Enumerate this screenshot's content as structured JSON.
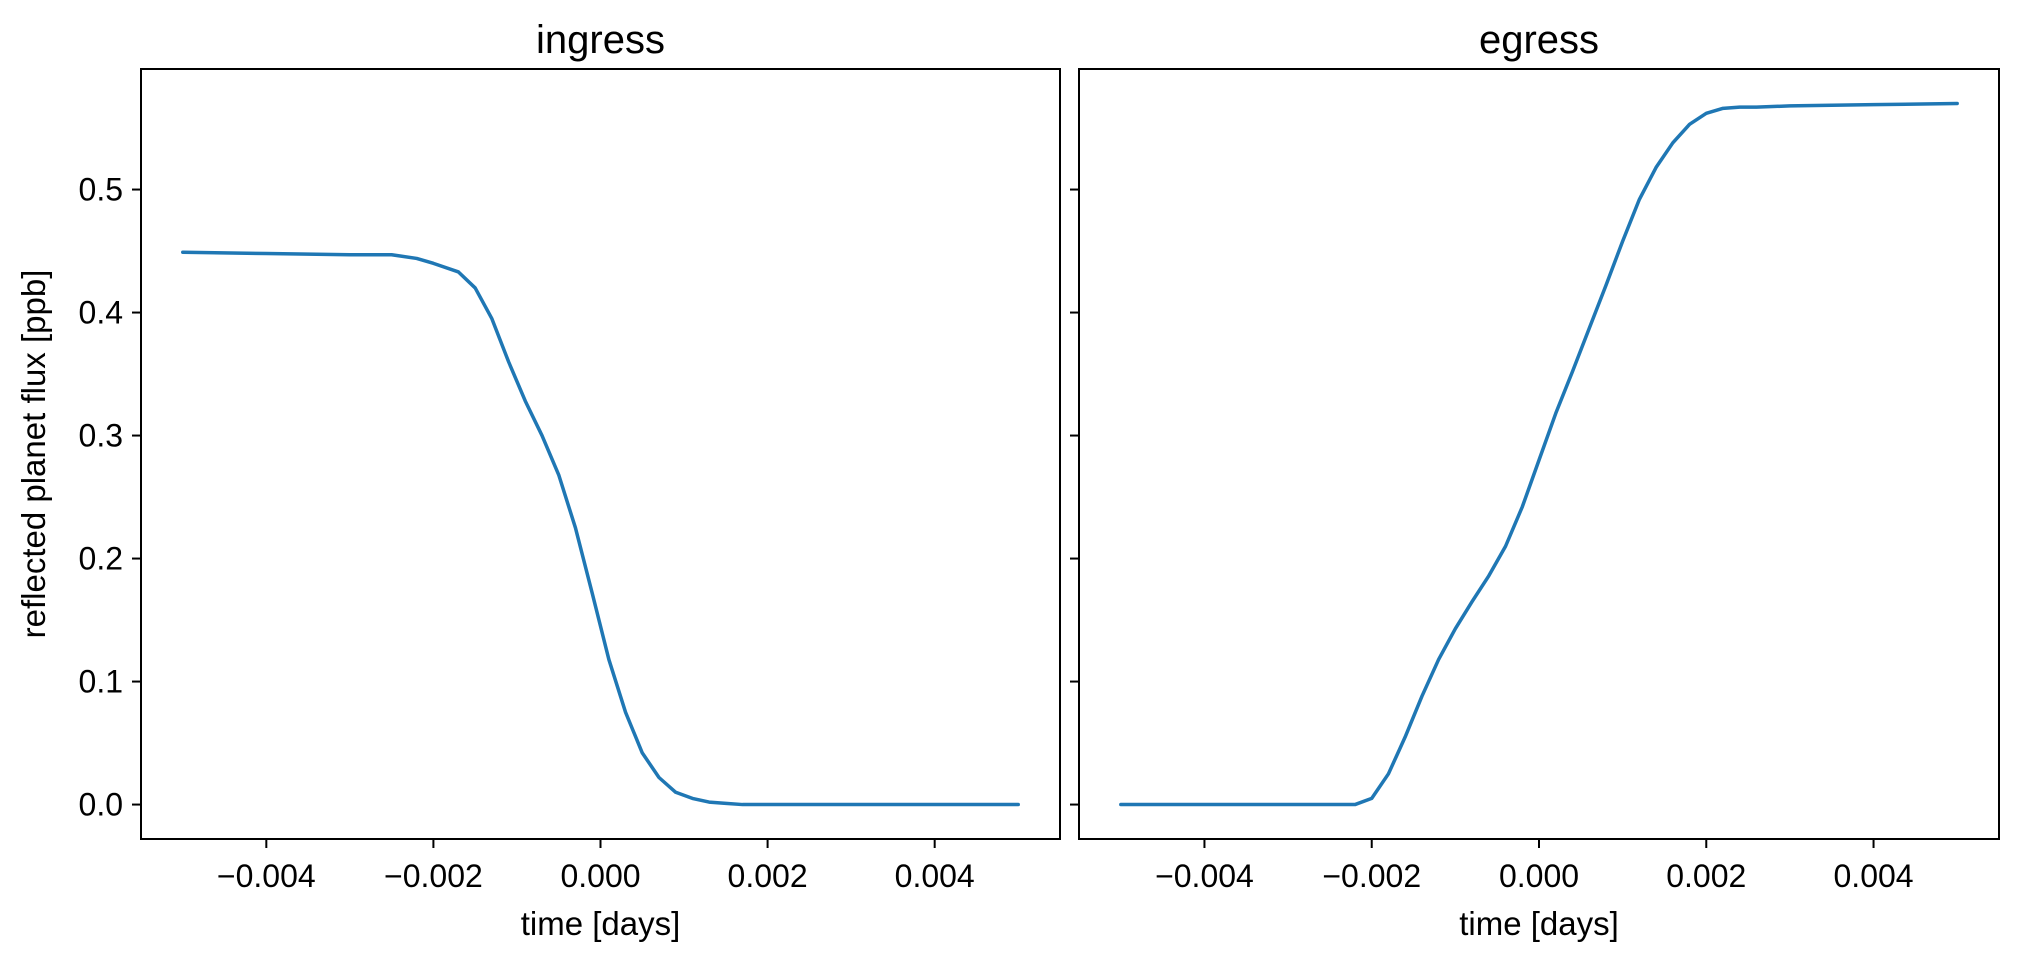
{
  "chart_data": [
    {
      "type": "line",
      "title": "ingress",
      "xlabel": "time [days]",
      "ylabel": "reflected planet flux [ppb]",
      "xlim": [
        -0.0055,
        0.0055
      ],
      "ylim": [
        -0.028,
        0.598
      ],
      "xticks": [
        -0.004,
        -0.002,
        0.0,
        0.002,
        0.004
      ],
      "xtick_labels": [
        "−0.004",
        "−0.002",
        "0.000",
        "0.002",
        "0.004"
      ],
      "yticks": [
        0.0,
        0.1,
        0.2,
        0.3,
        0.4,
        0.5
      ],
      "ytick_labels": [
        "0.0",
        "0.1",
        "0.2",
        "0.3",
        "0.4",
        "0.5"
      ],
      "show_ytick_labels": true,
      "grid": false,
      "series": [
        {
          "color": "#1f77b4",
          "x": [
            -0.005,
            -0.004,
            -0.003,
            -0.0025,
            -0.0022,
            -0.002,
            -0.0017,
            -0.0015,
            -0.0013,
            -0.0011,
            -0.0009,
            -0.0007,
            -0.0005,
            -0.0003,
            -0.0001,
            0.0001,
            0.0003,
            0.0005,
            0.0007,
            0.0009,
            0.0011,
            0.0013,
            0.0015,
            0.0017,
            0.0019,
            0.002,
            0.0021,
            0.0025,
            0.003,
            0.004,
            0.005
          ],
          "y": [
            0.449,
            0.448,
            0.447,
            0.447,
            0.444,
            0.44,
            0.433,
            0.42,
            0.395,
            0.36,
            0.328,
            0.3,
            0.268,
            0.225,
            0.172,
            0.118,
            0.075,
            0.042,
            0.022,
            0.01,
            0.005,
            0.002,
            0.001,
            0.0,
            0.0,
            0.0,
            0.0,
            0.0,
            0.0,
            0.0,
            0.0
          ]
        }
      ]
    },
    {
      "type": "line",
      "title": "egress",
      "xlabel": "time [days]",
      "ylabel": "",
      "xlim": [
        -0.0055,
        0.0055
      ],
      "ylim": [
        -0.028,
        0.598
      ],
      "xticks": [
        -0.004,
        -0.002,
        0.0,
        0.002,
        0.004
      ],
      "xtick_labels": [
        "−0.004",
        "−0.002",
        "0.000",
        "0.002",
        "0.004"
      ],
      "yticks": [
        0.0,
        0.1,
        0.2,
        0.3,
        0.4,
        0.5
      ],
      "ytick_labels": [],
      "show_ytick_labels": false,
      "grid": false,
      "series": [
        {
          "color": "#1f77b4",
          "x": [
            -0.005,
            -0.003,
            -0.0022,
            -0.002,
            -0.0018,
            -0.0016,
            -0.0014,
            -0.0012,
            -0.001,
            -0.0008,
            -0.0006,
            -0.0004,
            -0.0002,
            0.0,
            0.0002,
            0.0004,
            0.0006,
            0.0008,
            0.001,
            0.0012,
            0.0014,
            0.0016,
            0.0018,
            0.002,
            0.0022,
            0.0024,
            0.0026,
            0.003,
            0.004,
            0.005
          ],
          "y": [
            0.0,
            0.0,
            0.0,
            0.005,
            0.025,
            0.055,
            0.088,
            0.118,
            0.143,
            0.165,
            0.186,
            0.21,
            0.242,
            0.28,
            0.318,
            0.352,
            0.387,
            0.422,
            0.458,
            0.492,
            0.518,
            0.538,
            0.553,
            0.562,
            0.566,
            0.567,
            0.567,
            0.568,
            0.569,
            0.57
          ]
        }
      ]
    }
  ]
}
